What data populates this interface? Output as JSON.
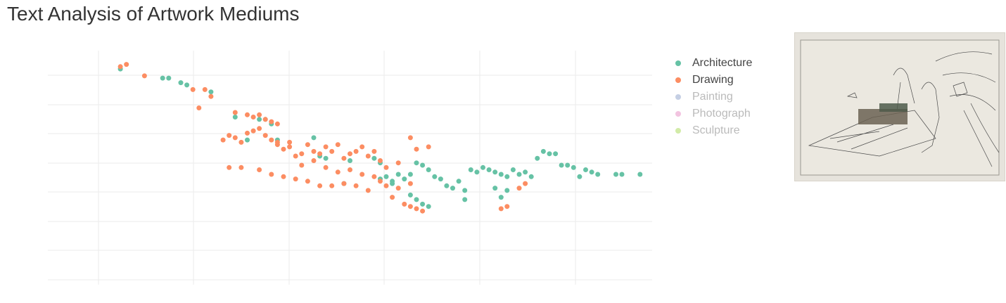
{
  "page": {
    "title": "Text Analysis of Artwork Mediums"
  },
  "colors": {
    "Architecture": "#66c2a5",
    "Drawing": "#fc8d62",
    "Painting": "#8da0cb",
    "Photograph": "#e78ac3",
    "Sculpture": "#a6d854"
  },
  "chart_data": {
    "type": "scatter",
    "title": "Text Analysis of Artwork Mediums",
    "xlabel": "",
    "ylabel": "",
    "xlim": [
      0,
      10
    ],
    "ylim": [
      0,
      10
    ],
    "grid": true,
    "legend_position": "right",
    "series": [
      {
        "name": "Architecture",
        "visible": true,
        "points": [
          [
            1.2,
            9.2
          ],
          [
            1.9,
            8.8
          ],
          [
            2.0,
            8.8
          ],
          [
            2.2,
            8.6
          ],
          [
            2.3,
            8.5
          ],
          [
            2.7,
            8.2
          ],
          [
            3.1,
            7.1
          ],
          [
            3.5,
            7.0
          ],
          [
            3.6,
            7.0
          ],
          [
            3.7,
            6.8
          ],
          [
            3.3,
            6.1
          ],
          [
            3.8,
            6.1
          ],
          [
            4.4,
            6.2
          ],
          [
            4.5,
            5.4
          ],
          [
            4.6,
            5.3
          ],
          [
            4.9,
            4.2
          ],
          [
            5.0,
            5.2
          ],
          [
            5.4,
            5.3
          ],
          [
            5.5,
            5.1
          ],
          [
            5.5,
            4.4
          ],
          [
            5.6,
            4.5
          ],
          [
            5.7,
            4.3
          ],
          [
            5.7,
            4.2
          ],
          [
            5.8,
            4.6
          ],
          [
            5.9,
            4.4
          ],
          [
            6.0,
            4.6
          ],
          [
            6.1,
            5.1
          ],
          [
            6.2,
            5.0
          ],
          [
            6.3,
            4.8
          ],
          [
            6.4,
            4.5
          ],
          [
            6.5,
            4.4
          ],
          [
            6.6,
            4.1
          ],
          [
            6.7,
            4.0
          ],
          [
            6.8,
            4.3
          ],
          [
            6.9,
            3.9
          ],
          [
            7.0,
            4.8
          ],
          [
            7.1,
            4.7
          ],
          [
            7.2,
            4.9
          ],
          [
            7.3,
            4.8
          ],
          [
            7.4,
            4.7
          ],
          [
            7.5,
            4.6
          ],
          [
            7.6,
            4.5
          ],
          [
            7.7,
            4.8
          ],
          [
            7.8,
            4.6
          ],
          [
            7.9,
            4.7
          ],
          [
            8.0,
            4.5
          ],
          [
            8.1,
            5.3
          ],
          [
            8.2,
            5.6
          ],
          [
            8.3,
            5.5
          ],
          [
            8.4,
            5.5
          ],
          [
            8.5,
            5.0
          ],
          [
            8.6,
            5.0
          ],
          [
            8.7,
            4.9
          ],
          [
            8.8,
            4.5
          ],
          [
            8.9,
            4.8
          ],
          [
            9.0,
            4.7
          ],
          [
            9.1,
            4.6
          ],
          [
            9.4,
            4.6
          ],
          [
            9.5,
            4.6
          ],
          [
            9.8,
            4.6
          ],
          [
            6.9,
            3.5
          ],
          [
            6.2,
            3.3
          ],
          [
            6.3,
            3.2
          ],
          [
            6.1,
            3.5
          ],
          [
            6.0,
            3.7
          ],
          [
            7.5,
            3.6
          ],
          [
            7.4,
            4.0
          ],
          [
            7.6,
            3.9
          ]
        ]
      },
      {
        "name": "Drawing",
        "visible": true,
        "points": [
          [
            1.2,
            9.3
          ],
          [
            1.3,
            9.4
          ],
          [
            1.6,
            8.9
          ],
          [
            2.4,
            8.3
          ],
          [
            2.6,
            8.3
          ],
          [
            2.7,
            8.0
          ],
          [
            2.5,
            7.5
          ],
          [
            3.1,
            7.3
          ],
          [
            3.3,
            7.2
          ],
          [
            3.4,
            7.1
          ],
          [
            3.5,
            7.2
          ],
          [
            3.6,
            7.0
          ],
          [
            3.7,
            6.9
          ],
          [
            3.8,
            6.8
          ],
          [
            2.9,
            6.1
          ],
          [
            3.0,
            6.3
          ],
          [
            3.1,
            6.2
          ],
          [
            3.2,
            6.0
          ],
          [
            3.3,
            6.4
          ],
          [
            3.4,
            6.5
          ],
          [
            3.5,
            6.6
          ],
          [
            3.6,
            6.3
          ],
          [
            3.7,
            6.1
          ],
          [
            3.8,
            6.0
          ],
          [
            3.9,
            5.7
          ],
          [
            4.0,
            5.8
          ],
          [
            4.1,
            5.4
          ],
          [
            4.2,
            5.5
          ],
          [
            4.3,
            5.9
          ],
          [
            4.4,
            5.6
          ],
          [
            4.5,
            5.5
          ],
          [
            4.6,
            5.8
          ],
          [
            4.7,
            5.6
          ],
          [
            4.8,
            5.9
          ],
          [
            4.9,
            5.3
          ],
          [
            5.0,
            5.5
          ],
          [
            5.1,
            5.6
          ],
          [
            5.2,
            5.8
          ],
          [
            5.3,
            5.4
          ],
          [
            5.4,
            5.6
          ],
          [
            5.5,
            5.2
          ],
          [
            3.0,
            4.9
          ],
          [
            3.2,
            4.9
          ],
          [
            3.5,
            4.8
          ],
          [
            3.7,
            4.6
          ],
          [
            3.9,
            4.5
          ],
          [
            4.1,
            4.4
          ],
          [
            4.3,
            4.3
          ],
          [
            4.5,
            4.1
          ],
          [
            4.7,
            4.1
          ],
          [
            4.9,
            4.2
          ],
          [
            5.1,
            4.1
          ],
          [
            5.3,
            3.9
          ],
          [
            5.5,
            4.3
          ],
          [
            5.6,
            4.1
          ],
          [
            5.8,
            4.0
          ],
          [
            6.0,
            4.2
          ],
          [
            5.7,
            3.6
          ],
          [
            5.9,
            3.3
          ],
          [
            6.0,
            3.2
          ],
          [
            6.1,
            3.1
          ],
          [
            6.2,
            3.0
          ],
          [
            7.5,
            3.1
          ],
          [
            7.6,
            3.2
          ],
          [
            7.8,
            4.0
          ],
          [
            7.9,
            4.2
          ],
          [
            6.0,
            6.2
          ],
          [
            6.1,
            5.7
          ],
          [
            6.3,
            5.8
          ],
          [
            3.8,
            5.9
          ],
          [
            4.0,
            6.0
          ],
          [
            4.2,
            5.0
          ],
          [
            4.4,
            5.2
          ],
          [
            4.6,
            4.9
          ],
          [
            4.8,
            4.7
          ],
          [
            5.0,
            4.8
          ],
          [
            5.2,
            4.6
          ],
          [
            5.4,
            4.5
          ],
          [
            5.6,
            4.9
          ],
          [
            5.8,
            5.1
          ]
        ]
      },
      {
        "name": "Painting",
        "visible": false,
        "points": []
      },
      {
        "name": "Photograph",
        "visible": false,
        "points": []
      },
      {
        "name": "Sculpture",
        "visible": false,
        "points": []
      }
    ]
  },
  "legend": {
    "items": [
      {
        "label": "Architecture"
      },
      {
        "label": "Drawing"
      },
      {
        "label": "Painting"
      },
      {
        "label": "Photograph"
      },
      {
        "label": "Sculpture"
      }
    ]
  },
  "artwork": {
    "icon": "artwork-thumbnail"
  }
}
